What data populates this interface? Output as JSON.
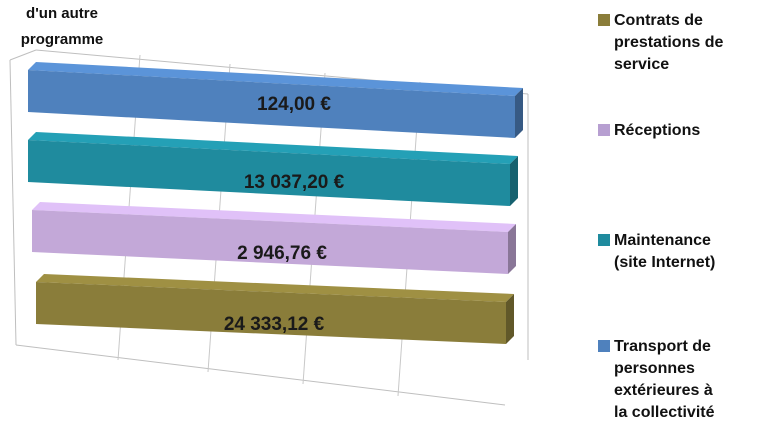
{
  "chart_data": {
    "type": "bar",
    "orientation": "horizontal",
    "style": "3d",
    "title_lines": [
      "d'un autre",
      "programme"
    ],
    "categories": [
      "Transport de personnes extérieures à la collectivité",
      "Maintenance (site Internet)",
      "Réceptions",
      "Contrats de prestations de service"
    ],
    "values": [
      124.0,
      13037.2,
      2946.76,
      24333.12
    ],
    "value_labels": [
      "124,00 €",
      "13 037,20 €",
      "2 946,76 €",
      "24 333,12 €"
    ],
    "colors": [
      "#4f81bd",
      "#1f8b9e",
      "#c3a8d8",
      "#8a7d3a"
    ],
    "legend": {
      "position": "right",
      "entries": [
        {
          "label": "Contrats de\nprestations de\nservice",
          "color": "#8a7d3a"
        },
        {
          "label": "Réceptions",
          "color": "#b79fd1"
        },
        {
          "label": "Maintenance\n(site Internet)",
          "color": "#1f8b9e"
        },
        {
          "label": "Transport de\npersonnes\nextérieures à\nla collectivité",
          "color": "#4f81bd"
        }
      ]
    },
    "grid": true
  }
}
